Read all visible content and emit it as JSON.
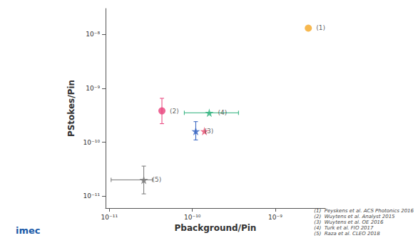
{
  "chart_data": {
    "type": "scatter",
    "x_label": "Pbackground/Pin",
    "y_label": "PStokes/Pin",
    "log": true,
    "grid": false,
    "xlim": [
      9e-12,
      4e-09
    ],
    "ylim": [
      6e-12,
      3e-08
    ],
    "xticks": [
      {
        "value": 1e-11,
        "label": "10⁻¹¹"
      },
      {
        "value": 1e-10,
        "label": "10⁻¹⁰"
      },
      {
        "value": 1e-09,
        "label": "10⁻⁹"
      }
    ],
    "yticks": [
      {
        "value": 1e-11,
        "label": "10⁻¹¹"
      },
      {
        "value": 1e-10,
        "label": "10⁻¹⁰"
      },
      {
        "value": 1e-09,
        "label": "10⁻⁹"
      },
      {
        "value": 1e-08,
        "label": "10⁻⁸"
      }
    ],
    "points": [
      {
        "x": 2.5e-09,
        "y": 1.3e-08,
        "marker": "circle",
        "color": "#f5a623",
        "ref": "(1)"
      },
      {
        "x": 4.3e-11,
        "y": 3.8e-10,
        "marker": "circle",
        "color": "#e8407a",
        "ref": "(2)",
        "y_error": [
          2.2e-10,
          6.5e-10
        ]
      },
      {
        "x": 1.1e-10,
        "y": 1.6e-10,
        "marker": "star",
        "color": "#2f5fbf",
        "ref": "(3)",
        "y_error": [
          1.1e-10,
          2.4e-10
        ]
      },
      {
        "x": 1.6e-10,
        "y": 3.5e-10,
        "marker": "star",
        "color": "#2bb07a",
        "ref": "(4)",
        "x_error": [
          8e-11,
          3.6e-10
        ]
      },
      {
        "x": 1.4e-10,
        "y": 1.6e-10,
        "marker": "star",
        "color": "#e84a6f"
      },
      {
        "x": 2.6e-11,
        "y": 2e-11,
        "marker": "star",
        "color": "#777777",
        "ref": "(5)",
        "x_error": [
          1.05e-11,
          3.3e-11
        ],
        "y_error": [
          1.1e-11,
          3.6e-11
        ]
      }
    ],
    "references": [
      "(1)  Peyskens et al. ACS Photonics 2016",
      "(2)  Wuytens et al. Analyst 2015",
      "(3)  Wuytens et al. OE 2016",
      "(4)  Turk et al. FIO 2017",
      "(5)  Raza et al. CLEO 2018"
    ],
    "logo": "imec"
  }
}
